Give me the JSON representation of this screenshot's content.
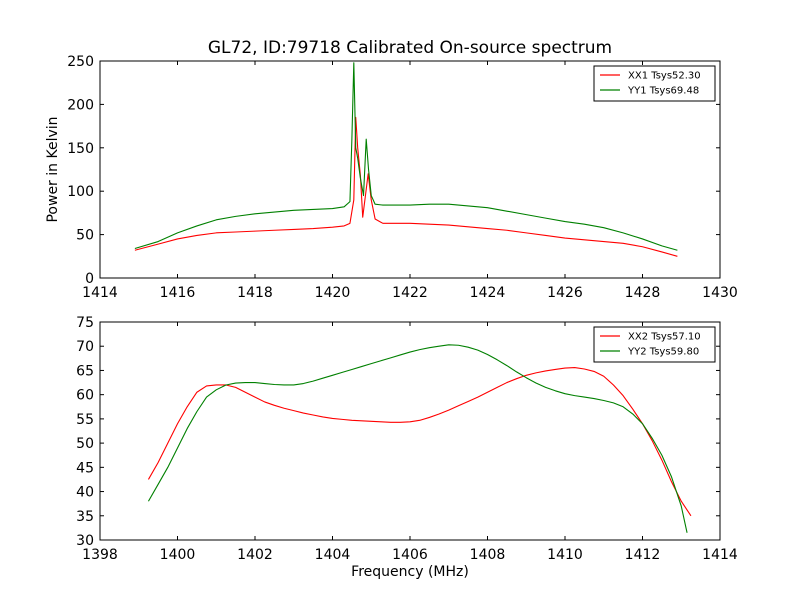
{
  "figure": {
    "title": "GL72, ID:79718 Calibrated On-source spectrum"
  },
  "chart_data": [
    {
      "type": "line",
      "title": "GL72, ID:79718 Calibrated On-source spectrum",
      "xlabel": "",
      "ylabel": "Power in Kelvin",
      "xlim": [
        1414,
        1430
      ],
      "ylim": [
        0,
        250
      ],
      "xticks": [
        "1414",
        "1416",
        "1418",
        "1420",
        "1422",
        "1424",
        "1426",
        "1428",
        "1430"
      ],
      "yticks": [
        "0",
        "50",
        "100",
        "150",
        "200",
        "250"
      ],
      "grid": false,
      "legend": "top-right",
      "series": [
        {
          "name": "XX1 Tsys52.30",
          "color": "#ff0000",
          "x": [
            1414.9,
            1415.5,
            1416.0,
            1416.5,
            1417.0,
            1417.5,
            1418.0,
            1418.5,
            1419.0,
            1419.5,
            1420.0,
            1420.3,
            1420.45,
            1420.55,
            1420.6,
            1420.65,
            1420.72,
            1420.78,
            1420.85,
            1420.92,
            1421.0,
            1421.1,
            1421.3,
            1421.7,
            1422.0,
            1422.5,
            1423.0,
            1423.5,
            1424.0,
            1424.5,
            1425.0,
            1425.5,
            1426.0,
            1426.5,
            1427.0,
            1427.5,
            1428.0,
            1428.5,
            1428.9
          ],
          "y": [
            32,
            39,
            45,
            49,
            52,
            53,
            54,
            55,
            56,
            57,
            58.5,
            60,
            63,
            90,
            185,
            150,
            118,
            70,
            95,
            120,
            90,
            68,
            63,
            63,
            63,
            62,
            61,
            59,
            57,
            55,
            52,
            49,
            46,
            44,
            42,
            40,
            36,
            30,
            25
          ]
        },
        {
          "name": "YY1 Tsys69.48",
          "color": "#008000",
          "x": [
            1414.9,
            1415.5,
            1416.0,
            1416.5,
            1417.0,
            1417.5,
            1418.0,
            1418.5,
            1419.0,
            1419.5,
            1420.0,
            1420.3,
            1420.45,
            1420.5,
            1420.55,
            1420.6,
            1420.65,
            1420.72,
            1420.8,
            1420.87,
            1420.93,
            1421.0,
            1421.1,
            1421.3,
            1421.7,
            1422.0,
            1422.5,
            1423.0,
            1423.5,
            1424.0,
            1424.5,
            1425.0,
            1425.5,
            1426.0,
            1426.5,
            1427.0,
            1427.5,
            1428.0,
            1428.5,
            1428.9
          ],
          "y": [
            34,
            42,
            52,
            60,
            67,
            71,
            74,
            76,
            78,
            79,
            80,
            82,
            88,
            160,
            248,
            150,
            138,
            115,
            95,
            160,
            125,
            95,
            85,
            84,
            84,
            84,
            85,
            85,
            83,
            81,
            77,
            73,
            69,
            65,
            62,
            58,
            52,
            45,
            37,
            32
          ]
        }
      ]
    },
    {
      "type": "line",
      "title": "",
      "xlabel": "Frequency (MHz)",
      "ylabel": "",
      "xlim": [
        1398,
        1414
      ],
      "ylim": [
        30,
        75
      ],
      "xticks": [
        "1398",
        "1400",
        "1402",
        "1404",
        "1406",
        "1408",
        "1410",
        "1412",
        "1414"
      ],
      "yticks": [
        "30",
        "35",
        "40",
        "45",
        "50",
        "55",
        "60",
        "65",
        "70",
        "75"
      ],
      "grid": false,
      "legend": "top-right",
      "series": [
        {
          "name": "XX2 Tsys57.10",
          "color": "#ff0000",
          "x": [
            1399.25,
            1399.5,
            1399.75,
            1400.0,
            1400.25,
            1400.5,
            1400.75,
            1401.0,
            1401.25,
            1401.5,
            1401.75,
            1402.0,
            1402.25,
            1402.5,
            1402.75,
            1403.0,
            1403.25,
            1403.5,
            1403.75,
            1404.0,
            1404.25,
            1404.5,
            1404.75,
            1405.0,
            1405.25,
            1405.5,
            1405.75,
            1406.0,
            1406.25,
            1406.5,
            1406.75,
            1407.0,
            1407.25,
            1407.5,
            1407.75,
            1408.0,
            1408.25,
            1408.5,
            1408.75,
            1409.0,
            1409.25,
            1409.5,
            1409.75,
            1410.0,
            1410.25,
            1410.5,
            1410.75,
            1411.0,
            1411.25,
            1411.5,
            1411.75,
            1412.0,
            1412.25,
            1412.5,
            1412.75,
            1413.0,
            1413.25
          ],
          "y": [
            42.5,
            46,
            50,
            54,
            57.5,
            60.5,
            61.8,
            62,
            62,
            61.5,
            60.5,
            59.5,
            58.5,
            57.8,
            57.2,
            56.7,
            56.2,
            55.8,
            55.4,
            55.1,
            54.9,
            54.7,
            54.6,
            54.5,
            54.4,
            54.3,
            54.3,
            54.4,
            54.7,
            55.3,
            56,
            56.8,
            57.7,
            58.6,
            59.5,
            60.5,
            61.5,
            62.5,
            63.3,
            64,
            64.5,
            64.9,
            65.2,
            65.5,
            65.6,
            65.3,
            64.8,
            63.8,
            62,
            59.8,
            57,
            54,
            50.5,
            46.5,
            42,
            38,
            35
          ]
        },
        {
          "name": "YY2 Tsys59.80",
          "color": "#008000",
          "x": [
            1399.25,
            1399.5,
            1399.75,
            1400.0,
            1400.25,
            1400.5,
            1400.75,
            1401.0,
            1401.25,
            1401.5,
            1401.75,
            1402.0,
            1402.25,
            1402.5,
            1402.75,
            1403.0,
            1403.25,
            1403.5,
            1403.75,
            1404.0,
            1404.25,
            1404.5,
            1404.75,
            1405.0,
            1405.25,
            1405.5,
            1405.75,
            1406.0,
            1406.25,
            1406.5,
            1406.75,
            1407.0,
            1407.25,
            1407.5,
            1407.75,
            1408.0,
            1408.25,
            1408.5,
            1408.75,
            1409.0,
            1409.25,
            1409.5,
            1409.75,
            1410.0,
            1410.25,
            1410.5,
            1410.75,
            1411.0,
            1411.25,
            1411.5,
            1411.75,
            1412.0,
            1412.25,
            1412.5,
            1412.75,
            1413.0,
            1413.15
          ],
          "y": [
            38,
            41.5,
            45,
            49,
            53,
            56.5,
            59.5,
            61,
            62,
            62.4,
            62.5,
            62.5,
            62.3,
            62.1,
            62,
            62,
            62.3,
            62.8,
            63.4,
            64,
            64.6,
            65.2,
            65.8,
            66.4,
            67,
            67.6,
            68.2,
            68.8,
            69.3,
            69.7,
            70,
            70.3,
            70.2,
            69.8,
            69.2,
            68.3,
            67.2,
            66,
            64.7,
            63.5,
            62.4,
            61.5,
            60.8,
            60.2,
            59.8,
            59.5,
            59.2,
            58.8,
            58.3,
            57.5,
            56,
            54,
            51,
            47.5,
            43,
            37,
            31.5
          ]
        }
      ]
    }
  ]
}
